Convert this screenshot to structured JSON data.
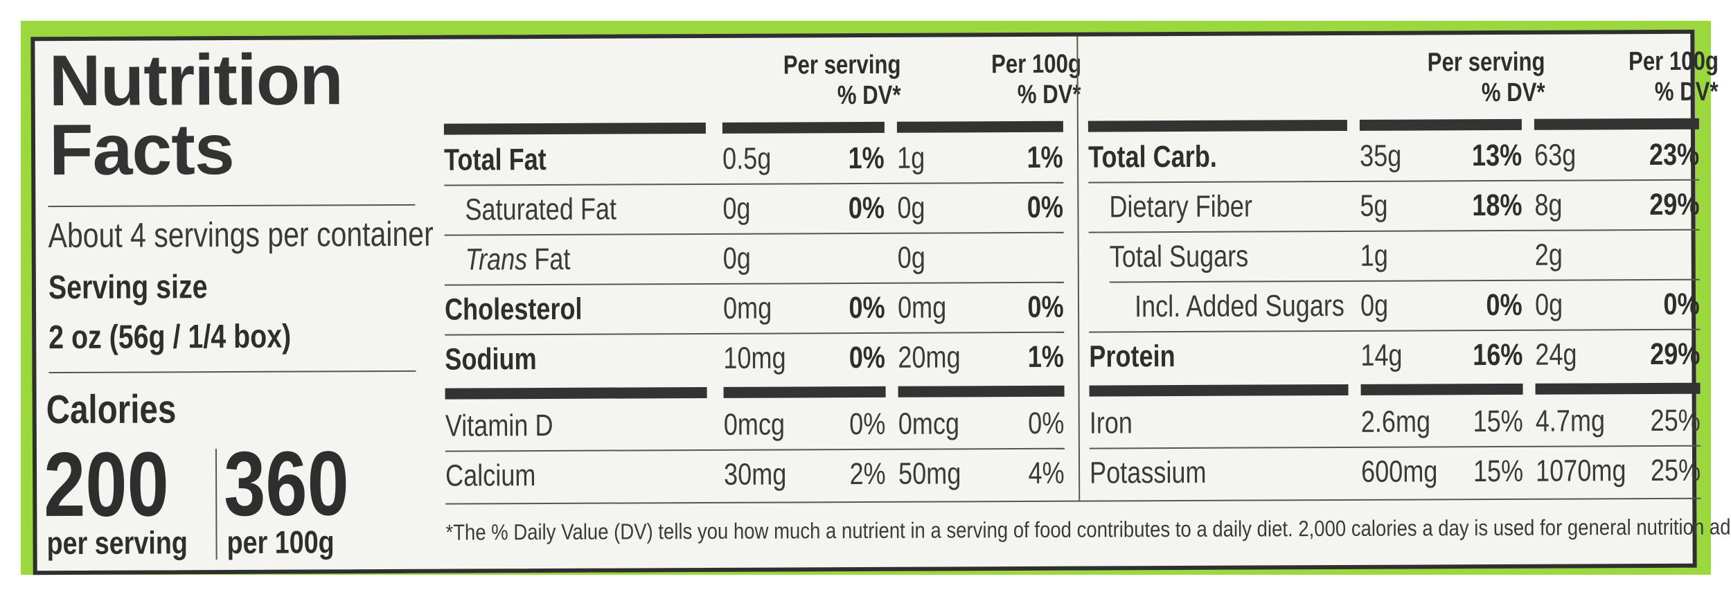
{
  "title_line1": "Nutrition",
  "title_line2": "Facts",
  "servings_per_container": "About 4 servings per container",
  "serving_size_label": "Serving size",
  "serving_size_value": "2 oz (56g / 1/4 box)",
  "calories_label": "Calories",
  "calories_per_serving": "200",
  "calories_per_serving_label": "per serving",
  "calories_per_100g": "360",
  "calories_per_100g_label": "per 100g",
  "header_per_serving_1": "Per serving",
  "header_per_100g_1": "Per 100g",
  "header_dv": "% DV*",
  "left_rows": [
    {
      "name": "Total Fat",
      "serv_amt": "0.5g",
      "serv_dv": "1%",
      "g100_amt": "1g",
      "g100_dv": "1%",
      "bold": true
    },
    {
      "name": "Saturated Fat",
      "serv_amt": "0g",
      "serv_dv": "0%",
      "g100_amt": "0g",
      "g100_dv": "0%",
      "bold": false
    },
    {
      "name_italic": "Trans",
      "name_rest": " Fat",
      "serv_amt": "0g",
      "serv_dv": "",
      "g100_amt": "0g",
      "g100_dv": "",
      "bold": false
    },
    {
      "name": "Cholesterol",
      "serv_amt": "0mg",
      "serv_dv": "0%",
      "g100_amt": "0mg",
      "g100_dv": "0%",
      "bold": true
    },
    {
      "name": "Sodium",
      "serv_amt": "10mg",
      "serv_dv": "0%",
      "g100_amt": "20mg",
      "g100_dv": "1%",
      "bold": true
    }
  ],
  "left_vitamins": [
    {
      "name": "Vitamin D",
      "serv_amt": "0mcg",
      "serv_dv": "0%",
      "g100_amt": "0mcg",
      "g100_dv": "0%"
    },
    {
      "name": "Calcium",
      "serv_amt": "30mg",
      "serv_dv": "2%",
      "g100_amt": "50mg",
      "g100_dv": "4%"
    }
  ],
  "right_rows": [
    {
      "name": "Total Carb.",
      "serv_amt": "35g",
      "serv_dv": "13%",
      "g100_amt": "63g",
      "g100_dv": "23%",
      "bold": true
    },
    {
      "name": "Dietary Fiber",
      "serv_amt": "5g",
      "serv_dv": "18%",
      "g100_amt": "8g",
      "g100_dv": "29%",
      "bold": false
    },
    {
      "name": "Total Sugars",
      "serv_amt": "1g",
      "serv_dv": "",
      "g100_amt": "2g",
      "g100_dv": "",
      "bold": false
    },
    {
      "name": "Incl. Added Sugars",
      "serv_amt": "0g",
      "serv_dv": "0%",
      "g100_amt": "0g",
      "g100_dv": "0%",
      "bold": false
    },
    {
      "name": "Protein",
      "serv_amt": "14g",
      "serv_dv": "16%",
      "g100_amt": "24g",
      "g100_dv": "29%",
      "bold": true
    }
  ],
  "right_vitamins": [
    {
      "name": "Iron",
      "serv_amt": "2.6mg",
      "serv_dv": "15%",
      "g100_amt": "4.7mg",
      "g100_dv": "25%"
    },
    {
      "name": "Potassium",
      "serv_amt": "600mg",
      "serv_dv": "15%",
      "g100_amt": "1070mg",
      "g100_dv": "25%"
    }
  ],
  "footnote": "*The % Daily Value (DV) tells you how much a nutrient in a serving of food contributes to a daily diet. 2,000 calories a day is used for general nutrition advice.",
  "colors": {
    "band": "#9ad83e",
    "ink": "#333333",
    "background": "#f4f5f1"
  }
}
